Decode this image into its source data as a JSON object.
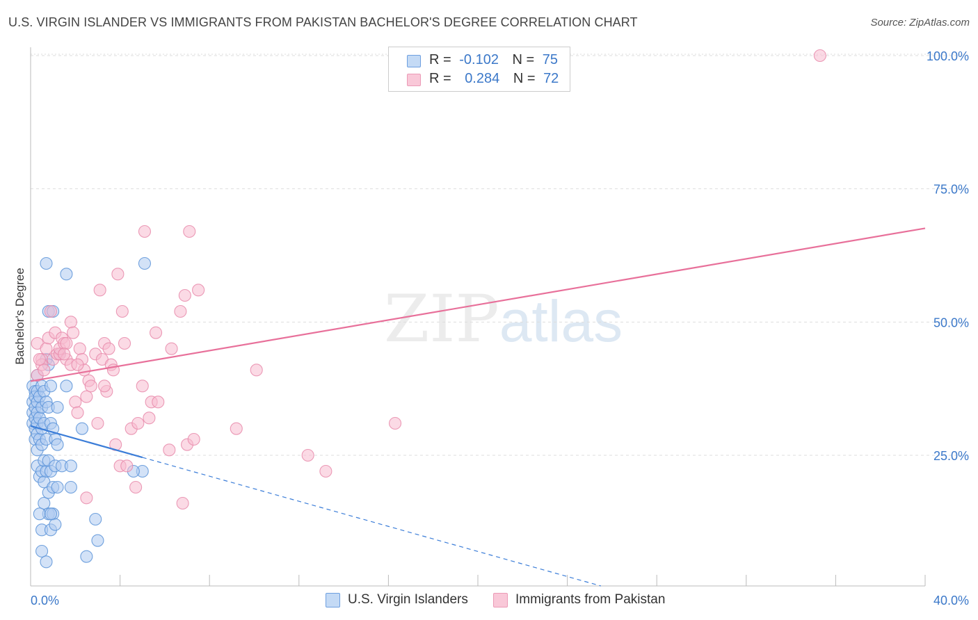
{
  "header": {
    "title": "U.S. VIRGIN ISLANDER VS IMMIGRANTS FROM PAKISTAN BACHELOR'S DEGREE CORRELATION CHART",
    "source": "Source: ZipAtlas.com"
  },
  "legend": {
    "rows": [
      {
        "r_label": "R =",
        "r_value": "-0.102",
        "n_label": "N =",
        "n_value": "75"
      },
      {
        "r_label": "R =",
        "r_value": "0.284",
        "n_label": "N =",
        "n_value": "72"
      }
    ]
  },
  "bottom_legend": [
    "U.S. Virgin Islanders",
    "Immigrants from Pakistan"
  ],
  "watermark": {
    "zip": "ZIP",
    "atlas": "atlas"
  },
  "colors": {
    "blue_fill": "#aecbf0",
    "blue_stroke": "#5b93d8",
    "blue_line": "#3b7dd8",
    "pink_fill": "#f7bcd0",
    "pink_stroke": "#e88aaa",
    "pink_line": "#e8709a",
    "axis_value": "#3b78c9",
    "grid": "#dddddd"
  },
  "chart_data": {
    "type": "scatter",
    "title": "U.S. VIRGIN ISLANDER VS IMMIGRANTS FROM PAKISTAN BACHELOR'S DEGREE CORRELATION CHART",
    "xlabel": "",
    "ylabel": "Bachelor's Degree",
    "xlim": [
      0,
      40
    ],
    "ylim": [
      0,
      102
    ],
    "x_tick_labels": [
      "0.0%",
      "40.0%"
    ],
    "y_ticks": [
      25,
      50,
      75,
      100
    ],
    "y_tick_labels": [
      "25.0%",
      "50.0%",
      "75.0%",
      "100.0%"
    ],
    "grid": true,
    "legend_position": "top-center",
    "series": [
      {
        "name": "U.S. Virgin Islanders",
        "r": -0.102,
        "n": 75,
        "trend": {
          "x0": 0,
          "y0": 30.5,
          "x1": 5,
          "y1": 24.6,
          "dash_to_x": 25.5,
          "dash_to_y": 0
        },
        "points": [
          [
            0.1,
            38
          ],
          [
            0.1,
            35
          ],
          [
            0.1,
            33
          ],
          [
            0.1,
            31
          ],
          [
            0.2,
            37
          ],
          [
            0.2,
            36
          ],
          [
            0.2,
            34
          ],
          [
            0.2,
            32
          ],
          [
            0.2,
            30
          ],
          [
            0.2,
            28
          ],
          [
            0.3,
            40
          ],
          [
            0.3,
            37
          ],
          [
            0.3,
            35
          ],
          [
            0.3,
            33
          ],
          [
            0.3,
            31
          ],
          [
            0.3,
            29
          ],
          [
            0.3,
            26
          ],
          [
            0.3,
            23
          ],
          [
            0.4,
            36
          ],
          [
            0.4,
            32
          ],
          [
            0.4,
            28
          ],
          [
            0.4,
            21
          ],
          [
            0.5,
            38
          ],
          [
            0.5,
            34
          ],
          [
            0.5,
            30
          ],
          [
            0.5,
            27
          ],
          [
            0.5,
            22
          ],
          [
            0.5,
            11
          ],
          [
            0.5,
            7
          ],
          [
            0.6,
            37
          ],
          [
            0.6,
            31
          ],
          [
            0.6,
            24
          ],
          [
            0.6,
            20
          ],
          [
            0.6,
            16
          ],
          [
            0.7,
            43
          ],
          [
            0.7,
            35
          ],
          [
            0.7,
            28
          ],
          [
            0.7,
            22
          ],
          [
            0.7,
            5
          ],
          [
            0.8,
            52
          ],
          [
            0.8,
            42
          ],
          [
            0.8,
            34
          ],
          [
            0.8,
            24
          ],
          [
            0.8,
            18
          ],
          [
            0.8,
            14
          ],
          [
            0.9,
            38
          ],
          [
            0.9,
            31
          ],
          [
            0.9,
            22
          ],
          [
            0.9,
            11
          ],
          [
            0.7,
            61
          ],
          [
            1.0,
            52
          ],
          [
            1.0,
            30
          ],
          [
            1.0,
            19
          ],
          [
            1.0,
            14
          ],
          [
            1.1,
            28
          ],
          [
            1.1,
            23
          ],
          [
            1.1,
            12
          ],
          [
            1.2,
            34
          ],
          [
            1.2,
            27
          ],
          [
            1.2,
            19
          ],
          [
            1.3,
            44
          ],
          [
            1.4,
            23
          ],
          [
            1.6,
            59
          ],
          [
            1.6,
            38
          ],
          [
            1.8,
            23
          ],
          [
            1.8,
            19
          ],
          [
            2.3,
            30
          ],
          [
            2.5,
            6
          ],
          [
            2.9,
            13
          ],
          [
            3.0,
            9
          ],
          [
            5.0,
            22
          ],
          [
            5.1,
            61
          ],
          [
            4.6,
            22
          ],
          [
            0.4,
            14
          ],
          [
            0.9,
            14
          ]
        ]
      },
      {
        "name": "Immigrants from Pakistan",
        "r": 0.284,
        "n": 72,
        "trend": {
          "x0": 0,
          "y0": 38.9,
          "x1": 40,
          "y1": 67.6
        },
        "points": [
          [
            0.3,
            46
          ],
          [
            0.3,
            40
          ],
          [
            0.5,
            43
          ],
          [
            0.5,
            42
          ],
          [
            0.6,
            41
          ],
          [
            0.7,
            45
          ],
          [
            0.8,
            47
          ],
          [
            0.9,
            52
          ],
          [
            1.0,
            43
          ],
          [
            1.1,
            48
          ],
          [
            1.2,
            44
          ],
          [
            1.3,
            44
          ],
          [
            1.3,
            45
          ],
          [
            1.4,
            47
          ],
          [
            1.5,
            46
          ],
          [
            1.6,
            46
          ],
          [
            1.6,
            43
          ],
          [
            1.8,
            50
          ],
          [
            1.8,
            42
          ],
          [
            1.9,
            48
          ],
          [
            2.0,
            35
          ],
          [
            2.1,
            33
          ],
          [
            2.2,
            45
          ],
          [
            2.3,
            43
          ],
          [
            2.4,
            41
          ],
          [
            2.5,
            36
          ],
          [
            2.5,
            17
          ],
          [
            2.6,
            39
          ],
          [
            2.7,
            38
          ],
          [
            2.9,
            44
          ],
          [
            3.0,
            31
          ],
          [
            3.1,
            56
          ],
          [
            3.2,
            43
          ],
          [
            3.3,
            46
          ],
          [
            3.4,
            37
          ],
          [
            3.5,
            45
          ],
          [
            3.6,
            42
          ],
          [
            3.7,
            41
          ],
          [
            3.8,
            27
          ],
          [
            3.9,
            59
          ],
          [
            4.0,
            23
          ],
          [
            4.1,
            52
          ],
          [
            4.2,
            46
          ],
          [
            4.5,
            30
          ],
          [
            4.7,
            19
          ],
          [
            4.8,
            31
          ],
          [
            5.0,
            38
          ],
          [
            5.1,
            67
          ],
          [
            5.3,
            32
          ],
          [
            5.4,
            35
          ],
          [
            5.6,
            48
          ],
          [
            6.3,
            45
          ],
          [
            6.7,
            52
          ],
          [
            6.8,
            16
          ],
          [
            6.9,
            55
          ],
          [
            7.0,
            27
          ],
          [
            7.1,
            67
          ],
          [
            7.3,
            28
          ],
          [
            7.5,
            56
          ],
          [
            9.2,
            30
          ],
          [
            10.1,
            41
          ],
          [
            12.4,
            25
          ],
          [
            13.2,
            22
          ],
          [
            16.3,
            31
          ],
          [
            35.3,
            100
          ],
          [
            0.4,
            43
          ],
          [
            1.5,
            44
          ],
          [
            2.1,
            42
          ],
          [
            3.3,
            38
          ],
          [
            4.3,
            23
          ],
          [
            5.7,
            35
          ],
          [
            6.2,
            26
          ]
        ]
      }
    ]
  }
}
